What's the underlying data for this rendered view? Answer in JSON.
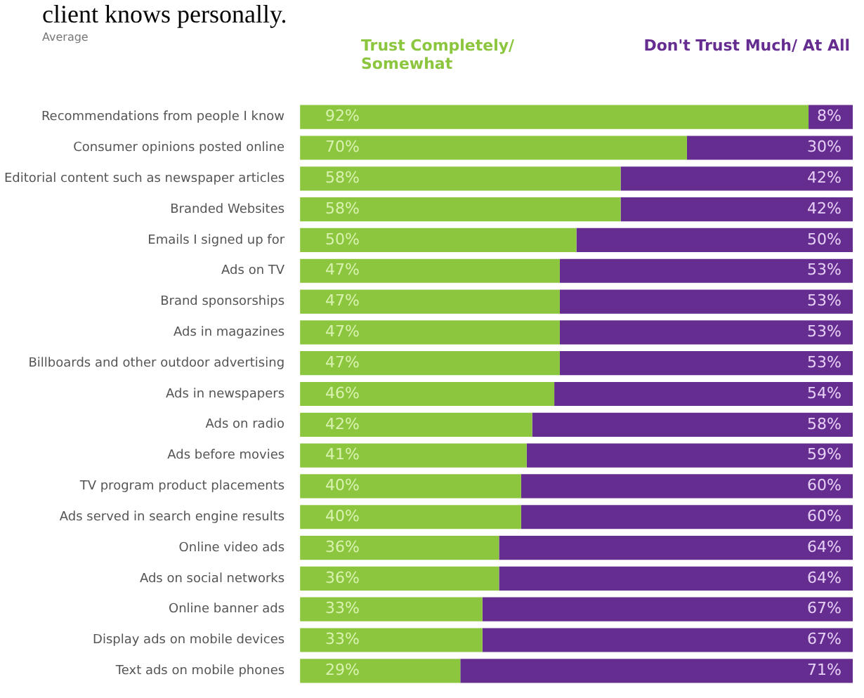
{
  "chart_data": {
    "type": "bar",
    "orientation": "horizontal",
    "stacked": true,
    "subtitle": "Average",
    "annotations": [
      "client knows personally."
    ],
    "categories": [
      "Recommendations from people I know",
      "Consumer opinions posted online",
      "Editorial content such as newspaper articles",
      "Branded Websites",
      "Emails I signed up for",
      "Ads on TV",
      "Brand sponsorships",
      "Ads in magazines",
      "Billboards and other outdoor advertising",
      "Ads in newspapers",
      "Ads on radio",
      "Ads before movies",
      "TV program product placements",
      "Ads served in search engine results",
      "Online video ads",
      "Ads on social networks",
      "Online banner ads",
      "Display ads on mobile devices",
      "Text ads on mobile phones"
    ],
    "series": [
      {
        "name": "Trust Completely/ Somewhat",
        "color": "#8cc63f",
        "values": [
          92,
          70,
          58,
          58,
          50,
          47,
          47,
          47,
          47,
          46,
          42,
          41,
          40,
          40,
          36,
          36,
          33,
          33,
          29
        ],
        "value_labels": [
          "92%",
          "70%",
          "58%",
          "58%",
          "50%",
          "47%",
          "47%",
          "47%",
          "47%",
          "46%",
          "42%",
          "41%",
          "40%",
          "40%",
          "36%",
          "36%",
          "33%",
          "33%",
          "29%"
        ]
      },
      {
        "name": "Don't Trust Much/ At All",
        "color": "#662d91",
        "values": [
          8,
          30,
          42,
          42,
          50,
          53,
          53,
          53,
          53,
          54,
          58,
          59,
          60,
          60,
          64,
          64,
          67,
          67,
          71
        ],
        "value_labels": [
          "8%",
          "30%",
          "42%",
          "42%",
          "50%",
          "53%",
          "53%",
          "53%",
          "53%",
          "54%",
          "58%",
          "59%",
          "60%",
          "60%",
          "64%",
          "64%",
          "67%",
          "67%",
          "71%"
        ]
      }
    ],
    "legend": "top",
    "grid": false,
    "tick_labels": "y"
  }
}
